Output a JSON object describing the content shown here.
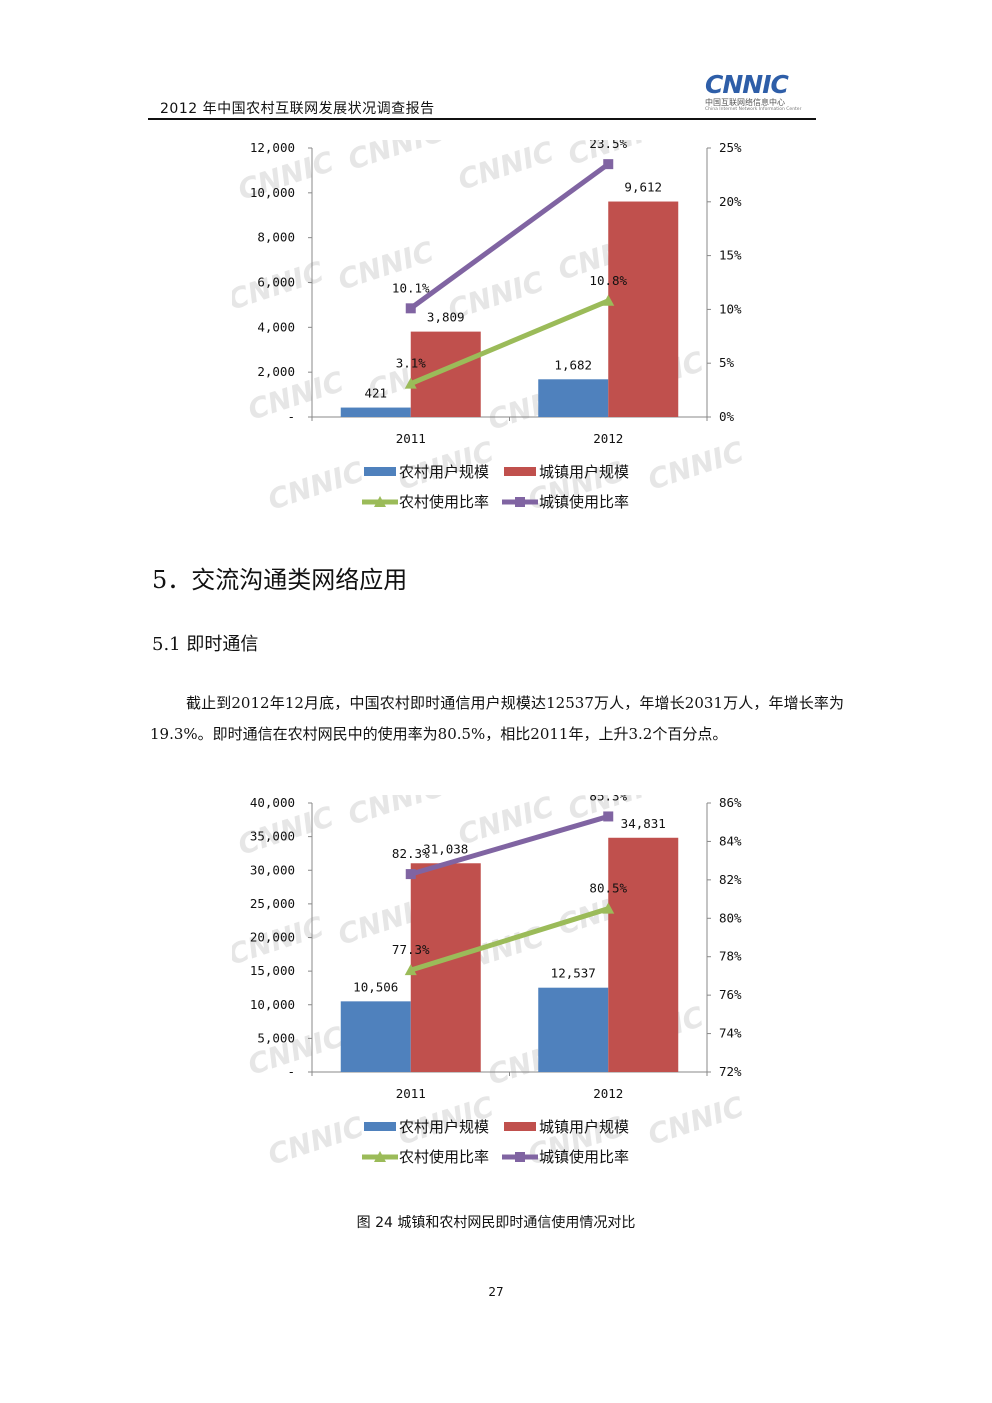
{
  "header": {
    "title": "2012 年中国农村互联网发展状况调查报告",
    "logo_text": "CNNIC",
    "logo_subtitle": "中国互联网络信息中心",
    "logo_subtitle_en": "China Internet Network Information Center"
  },
  "watermark": "CNNIC",
  "section": {
    "heading": "5．交流沟通类网络应用",
    "subheading": "5.1 即时通信",
    "paragraph": "截止到2012年12月底，中国农村即时通信用户规模达12537万人，年增长2031万人，年增长率为19.3%。即时通信在农村网民中的使用率为80.5%，相比2011年，上升3.2个百分点。"
  },
  "caption": "图 24 城镇和农村网民即时通信使用情况对比",
  "page_number": "27",
  "chart_data": [
    {
      "type": "bar",
      "categories": [
        "2011",
        "2012"
      ],
      "series": [
        {
          "name": "农村用户规模",
          "kind": "bar",
          "axis": "left",
          "color": "#4f81bd",
          "values": [
            421,
            1682
          ],
          "labels": [
            "421",
            "1,682"
          ]
        },
        {
          "name": "城镇用户规模",
          "kind": "bar",
          "axis": "left",
          "color": "#c0504d",
          "values": [
            3809,
            9612
          ],
          "labels": [
            "3,809",
            "9,612"
          ]
        },
        {
          "name": "农村使用比率",
          "kind": "line",
          "axis": "right",
          "color": "#9bbb59",
          "marker": "triangle",
          "values": [
            3.1,
            10.8
          ],
          "labels": [
            "3.1%",
            "10.8%"
          ]
        },
        {
          "name": "城镇使用比率",
          "kind": "line",
          "axis": "right",
          "color": "#8064a2",
          "marker": "square",
          "values": [
            10.1,
            23.5
          ],
          "labels": [
            "10.1%",
            "23.5%"
          ]
        }
      ],
      "ylim": [
        0,
        12000
      ],
      "y_ticks": [
        0,
        2000,
        4000,
        6000,
        8000,
        10000,
        12000
      ],
      "y_tick_labels": [
        "-",
        "2,000",
        "4,000",
        "6,000",
        "8,000",
        "10,000",
        "12,000"
      ],
      "y2lim": [
        0,
        25
      ],
      "y2_ticks": [
        0,
        5,
        10,
        15,
        20,
        25
      ],
      "y2_tick_labels": [
        "0%",
        "5%",
        "10%",
        "15%",
        "20%",
        "25%"
      ],
      "legend_position": "bottom",
      "grid": false
    },
    {
      "type": "bar",
      "categories": [
        "2011",
        "2012"
      ],
      "series": [
        {
          "name": "农村用户规模",
          "kind": "bar",
          "axis": "left",
          "color": "#4f81bd",
          "values": [
            10506,
            12537
          ],
          "labels": [
            "10,506",
            "12,537"
          ]
        },
        {
          "name": "城镇用户规模",
          "kind": "bar",
          "axis": "left",
          "color": "#c0504d",
          "values": [
            31038,
            34831
          ],
          "labels": [
            "31,038",
            "34,831"
          ]
        },
        {
          "name": "农村使用比率",
          "kind": "line",
          "axis": "right",
          "color": "#9bbb59",
          "marker": "triangle",
          "values": [
            77.3,
            80.5
          ],
          "labels": [
            "77.3%",
            "80.5%"
          ]
        },
        {
          "name": "城镇使用比率",
          "kind": "line",
          "axis": "right",
          "color": "#8064a2",
          "marker": "square",
          "values": [
            82.3,
            85.3
          ],
          "labels": [
            "82.3%",
            "85.3%"
          ]
        }
      ],
      "ylim": [
        0,
        40000
      ],
      "y_ticks": [
        0,
        5000,
        10000,
        15000,
        20000,
        25000,
        30000,
        35000,
        40000
      ],
      "y_tick_labels": [
        "-",
        "5,000",
        "10,000",
        "15,000",
        "20,000",
        "25,000",
        "30,000",
        "35,000",
        "40,000"
      ],
      "y2lim": [
        72,
        86
      ],
      "y2_ticks": [
        72,
        74,
        76,
        78,
        80,
        82,
        84,
        86
      ],
      "y2_tick_labels": [
        "72%",
        "74%",
        "76%",
        "78%",
        "80%",
        "82%",
        "84%",
        "86%"
      ],
      "legend_position": "bottom",
      "grid": false
    }
  ]
}
